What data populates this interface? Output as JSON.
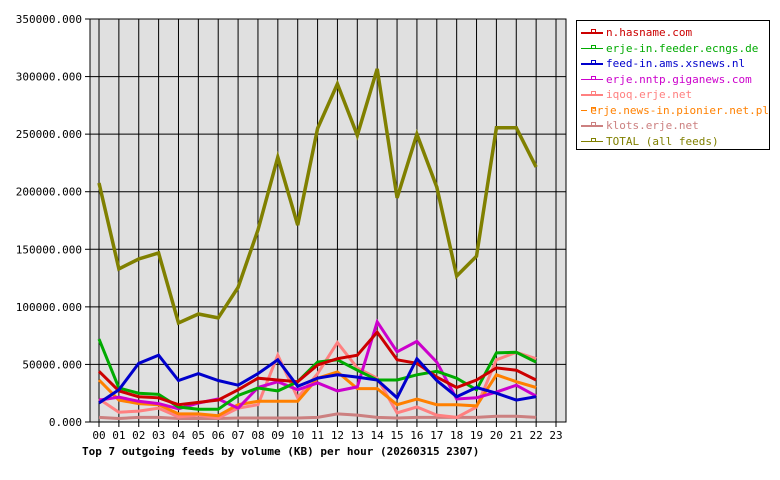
{
  "chart_data": {
    "type": "line",
    "title": "Top 7 outgoing feeds by volume (KB) per hour (20260315 2307)",
    "xlabel": "",
    "ylabel": "",
    "ylim": [
      0,
      350000
    ],
    "grid": true,
    "legend_position": "right",
    "x": [
      "00",
      "01",
      "02",
      "03",
      "04",
      "05",
      "06",
      "07",
      "08",
      "09",
      "10",
      "11",
      "12",
      "13",
      "14",
      "15",
      "16",
      "17",
      "18",
      "19",
      "20",
      "21",
      "22",
      "23"
    ],
    "y_ticks": [
      "0.000",
      "50000.000",
      "100000.000",
      "150000.000",
      "200000.000",
      "250000.000",
      "300000.000",
      "350000.000"
    ],
    "series": [
      {
        "name": "n.hasname.com",
        "color": "#cc0000",
        "values": [
          44000,
          27000,
          22000,
          21000,
          15000,
          17000,
          19000,
          28000,
          38000,
          36500,
          35000,
          49500,
          55000,
          58000,
          78000,
          54000,
          51000,
          39000,
          30000,
          36500,
          47000,
          45000,
          36500
        ]
      },
      {
        "name": "erje-in.feeder.ecngs.de",
        "color": "#00aa00",
        "values": [
          72000,
          29500,
          25000,
          24000,
          13000,
          11000,
          11000,
          23000,
          29500,
          27000,
          35000,
          52000,
          54000,
          45000,
          36500,
          36500,
          41000,
          44000,
          38000,
          28000,
          60000,
          60500,
          52000
        ]
      },
      {
        "name": "feed-in.ams.xsnews.nl",
        "color": "#0000cc",
        "values": [
          16500,
          28000,
          51000,
          58000,
          36000,
          42000,
          36000,
          32000,
          42000,
          54000,
          31000,
          38000,
          41000,
          39000,
          36500,
          21000,
          55000,
          36000,
          22000,
          30000,
          25000,
          19000,
          22000
        ]
      },
      {
        "name": "erje.nntp.giganews.com",
        "color": "#cc00cc",
        "values": [
          19000,
          21500,
          18000,
          16000,
          11500,
          16500,
          20000,
          12000,
          30000,
          35000,
          28000,
          34000,
          27000,
          30500,
          87000,
          61000,
          70000,
          52000,
          20000,
          21000,
          26000,
          32000,
          22500
        ]
      },
      {
        "name": "iqoq.erje.net",
        "color": "#ff8080",
        "values": [
          20000,
          8500,
          9500,
          12000,
          4500,
          6000,
          3500,
          12000,
          15000,
          58000,
          21000,
          42000,
          69000,
          47000,
          38000,
          8000,
          13000,
          6000,
          4000,
          13000,
          54000,
          60500,
          55000
        ]
      },
      {
        "name": "erje.news-in.pionier.net.pl",
        "color": "#ff8000",
        "values": [
          36500,
          19000,
          16000,
          15000,
          7000,
          7000,
          5500,
          15000,
          18000,
          18000,
          18000,
          38000,
          43500,
          29000,
          29000,
          15000,
          20000,
          15000,
          15000,
          14000,
          41000,
          35000,
          30000
        ]
      },
      {
        "name": "klots.erje.net",
        "color": "#cc8080",
        "values": [
          4000,
          3000,
          4000,
          4000,
          3000,
          3000,
          3000,
          3500,
          3500,
          3500,
          3500,
          4000,
          7000,
          6000,
          4000,
          3500,
          4000,
          4000,
          4000,
          4000,
          5000,
          5000,
          4000
        ]
      },
      {
        "name": "TOTAL (all feeds)",
        "color": "#808000",
        "values": [
          207600,
          133000,
          141600,
          146800,
          86000,
          93800,
          90400,
          117000,
          166800,
          230000,
          171000,
          255000,
          293600,
          249000,
          306700,
          194600,
          250000,
          204000,
          126800,
          144000,
          255500,
          255500,
          221500
        ]
      }
    ]
  },
  "legend": {
    "items": [
      {
        "label": "n.hasname.com",
        "color": "#cc0000"
      },
      {
        "label": "erje-in.feeder.ecngs.de",
        "color": "#00aa00"
      },
      {
        "label": "feed-in.ams.xsnews.nl",
        "color": "#0000cc"
      },
      {
        "label": "erje.nntp.giganews.com",
        "color": "#cc00cc"
      },
      {
        "label": "iqoq.erje.net",
        "color": "#ff8080"
      },
      {
        "label": "erje.news-in.pionier.net.pl",
        "color": "#ff8000"
      },
      {
        "label": "klots.erje.net",
        "color": "#cc8080"
      },
      {
        "label": "TOTAL (all feeds)",
        "color": "#808000"
      }
    ]
  },
  "colors": {
    "plot_background": "#e0e0e0",
    "grid": "#000000",
    "page_background": "#ffffff"
  }
}
